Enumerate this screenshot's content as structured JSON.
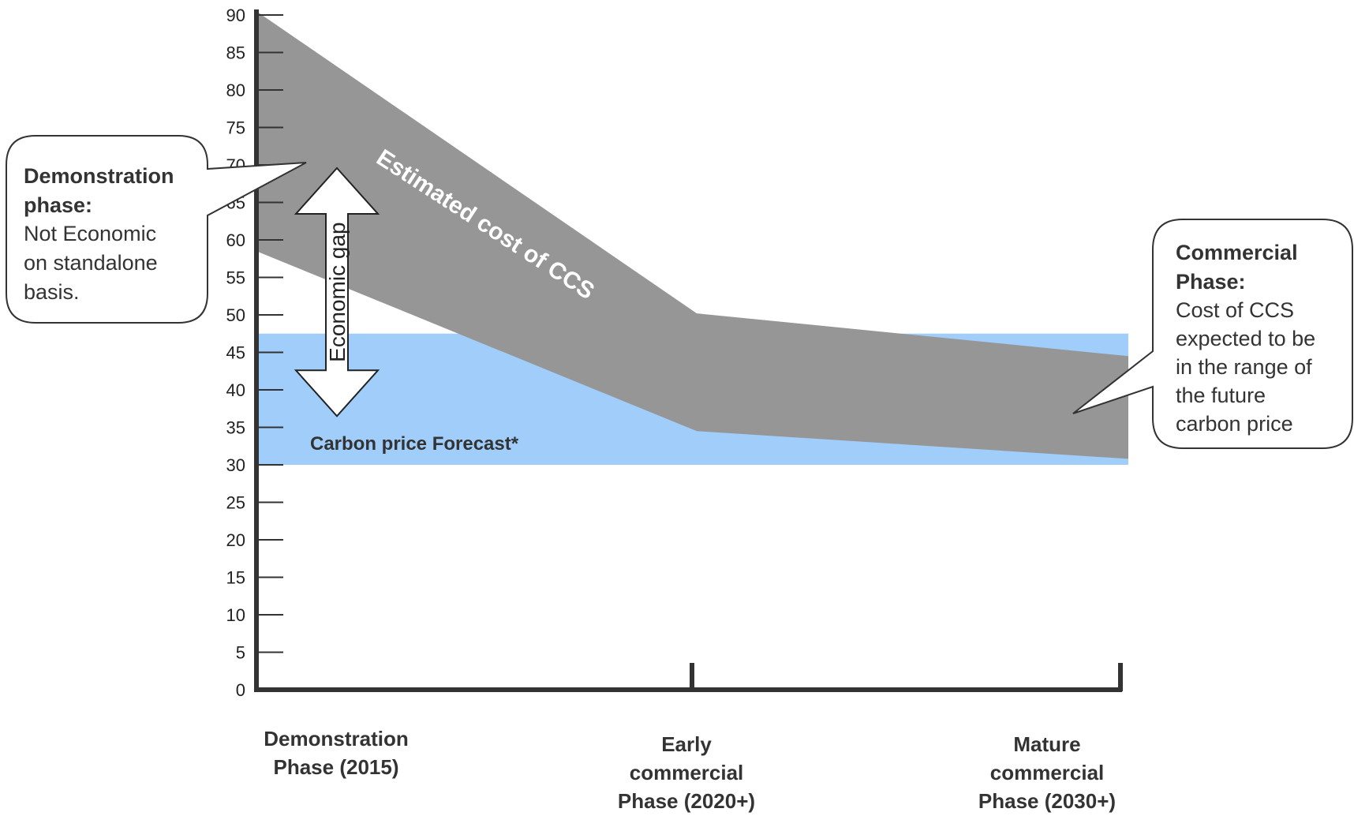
{
  "chart_data": {
    "type": "area",
    "categories": [
      "Demonstration Phase (2015)",
      "Early commercial Phase (2020+)",
      "Mature commercial Phase (2030+)"
    ],
    "category_lines": [
      [
        "Demonstration",
        "Phase (2015)"
      ],
      [
        "Early",
        "commercial",
        "Phase (2020+)"
      ],
      [
        "Mature",
        "commercial",
        "Phase (2030+)"
      ]
    ],
    "ylim": [
      0,
      90
    ],
    "yticks": [
      0,
      5,
      10,
      15,
      20,
      25,
      30,
      35,
      40,
      45,
      50,
      55,
      60,
      65,
      70,
      75,
      80,
      85,
      90
    ],
    "series": [
      {
        "name": "Estimated cost of CCS",
        "color": "#969696",
        "upper": [
          90.5,
          50.2,
          44.5
        ],
        "lower": [
          58.5,
          34.5,
          30.8
        ]
      }
    ],
    "bands": [
      {
        "name": "Carbon price Forecast*",
        "color": "#a0cdfa",
        "from": 30,
        "to": 47.5
      }
    ],
    "annotations": {
      "gap_label": "Economic gap",
      "gap_from": 36.5,
      "gap_to": 70
    },
    "callouts": [
      {
        "title_lines": [
          "Demonstration",
          "phase:"
        ],
        "body_lines": [
          "Not Economic",
          "on standalone",
          "basis."
        ]
      },
      {
        "title_lines": [
          "Commercial",
          "Phase:"
        ],
        "body_lines": [
          "Cost of CCS",
          "expected to be",
          "in the range of",
          "the future",
          "carbon price"
        ]
      }
    ]
  }
}
